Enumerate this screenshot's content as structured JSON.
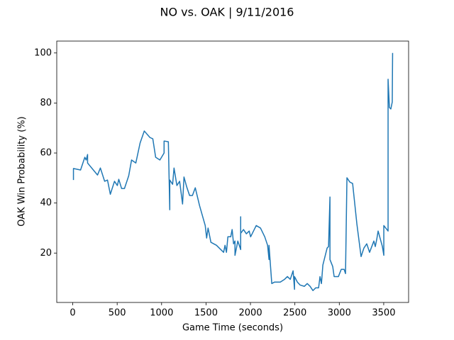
{
  "chart_data": {
    "type": "line",
    "title": "NO vs. OAK | 9/11/2016",
    "x_label": "Game Time (seconds)",
    "y_label": "OAK Win Probability (%)",
    "x": [
      8,
      8,
      88,
      136,
      151,
      167,
      167,
      279,
      311,
      359,
      391,
      423,
      470,
      502,
      518,
      550,
      582,
      630,
      662,
      710,
      758,
      805,
      869,
      901,
      933,
      981,
      1028,
      1028,
      1076,
      1092,
      1092,
      1124,
      1140,
      1172,
      1203,
      1236,
      1252,
      1283,
      1315,
      1347,
      1379,
      1427,
      1491,
      1507,
      1523,
      1555,
      1618,
      1666,
      1698,
      1714,
      1730,
      1746,
      1778,
      1794,
      1810,
      1826,
      1826,
      1858,
      1890,
      1890,
      1890,
      1922,
      1954,
      1986,
      2002,
      2065,
      2113,
      2161,
      2193,
      2209,
      2209,
      2240,
      2272,
      2336,
      2384,
      2416,
      2448,
      2480,
      2496,
      2496,
      2528,
      2560,
      2607,
      2639,
      2671,
      2703,
      2735,
      2767,
      2783,
      2799,
      2815,
      2863,
      2879,
      2895,
      2895,
      2926,
      2942,
      2990,
      3022,
      3054,
      3070,
      3086,
      3118,
      3150,
      3198,
      3245,
      3277,
      3309,
      3341,
      3389,
      3405,
      3421,
      3437,
      3485,
      3501,
      3501,
      3549,
      3549,
      3564,
      3580,
      3596,
      3600
    ],
    "series": [
      {
        "name": "OAK Win Probability",
        "color": "#1f77b4",
        "values": [
          49.2,
          53.8,
          53.2,
          58.3,
          57.2,
          59.4,
          56,
          51.2,
          54,
          48.7,
          49.2,
          43.5,
          48.7,
          47,
          49.5,
          45.8,
          45.8,
          50.9,
          57.2,
          56,
          64,
          68.8,
          66.2,
          65.7,
          58.3,
          57.2,
          60,
          64.8,
          64.5,
          37.3,
          49.2,
          47.5,
          54,
          47,
          48.7,
          39.6,
          50.4,
          46.4,
          43,
          43,
          46.1,
          39,
          31,
          26,
          30,
          24.3,
          23.1,
          21.4,
          20.3,
          23.1,
          20.3,
          26.5,
          26.5,
          29.4,
          23.7,
          24.8,
          19.1,
          24.8,
          21.4,
          34.5,
          27.9,
          29.4,
          27.7,
          28.8,
          26.5,
          31,
          30,
          26.5,
          23.1,
          17.4,
          23.1,
          7.8,
          8.4,
          8.4,
          9.5,
          10.6,
          9.5,
          12.9,
          5.5,
          10.6,
          8.4,
          7.2,
          6.7,
          7.8,
          6.7,
          5,
          6.1,
          6.1,
          10.6,
          7.8,
          15.2,
          22,
          22.6,
          42.4,
          17.4,
          14.6,
          10.6,
          10.6,
          13.5,
          13.5,
          11.8,
          50.1,
          48.4,
          47.8,
          31.6,
          18.6,
          22,
          23.7,
          20.3,
          24.8,
          22.6,
          25.4,
          28.8,
          22.6,
          19.1,
          31,
          28.8,
          89.5,
          78.2,
          77.6,
          80.4,
          100
        ]
      }
    ],
    "xlim": [
      -180,
      3780
    ],
    "ylim": [
      0.25,
      104.75
    ],
    "xticks": [
      0,
      500,
      1000,
      1500,
      2000,
      2500,
      3000,
      3500
    ],
    "yticks": [
      20,
      40,
      60,
      80,
      100
    ]
  }
}
